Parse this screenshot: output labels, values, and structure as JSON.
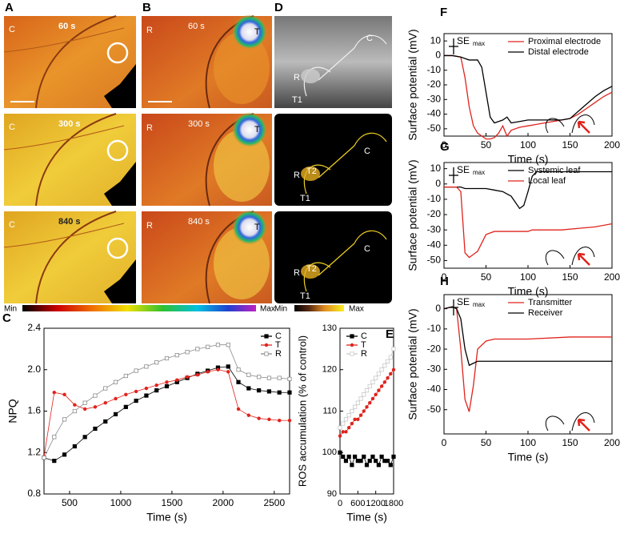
{
  "image_panels": [
    {
      "panel": "A",
      "frames": [
        {
          "marker": "C",
          "time": "60 s"
        },
        {
          "marker": "C",
          "time": "300 s"
        },
        {
          "marker": "C",
          "time": "840 s"
        }
      ]
    },
    {
      "panel": "B",
      "frames": [
        {
          "marker": "R",
          "tissue": "T",
          "time": "60 s"
        },
        {
          "marker": "R",
          "tissue": "T",
          "time": "300 s"
        },
        {
          "marker": "R",
          "tissue": "T",
          "time": "840 s"
        }
      ]
    },
    {
      "panel": "D",
      "frames": [
        {
          "labels": [
            "C",
            "R",
            "T1"
          ]
        },
        {
          "labels": [
            "C",
            "R",
            "T2",
            "T1"
          ]
        },
        {
          "labels": [
            "C",
            "R",
            "T2",
            "T1"
          ]
        }
      ]
    }
  ],
  "color_scales": [
    {
      "min": "Min",
      "max": "Max"
    },
    {
      "min": "Min",
      "max": "Max"
    }
  ],
  "chart_data": [
    {
      "type": "line",
      "panel": "C",
      "xlabel": "Time (s)",
      "ylabel": "NPQ",
      "legend": "upper right",
      "x": [
        250,
        350,
        450,
        550,
        650,
        750,
        850,
        950,
        1050,
        1150,
        1250,
        1350,
        1450,
        1550,
        1650,
        1750,
        1850,
        1950,
        2050,
        2150,
        2250,
        2350,
        2450,
        2550,
        2650
      ],
      "xlim": [
        250,
        2650
      ],
      "xticks": [
        500,
        1000,
        1500,
        2000,
        2500
      ],
      "ylim": [
        0.8,
        2.4
      ],
      "yticks": [
        0.8,
        1.2,
        1.6,
        {
          "value": 2,
          "label": "2.0"
        },
        2.4
      ],
      "series": [
        {
          "name": "C",
          "color": "#000000",
          "marker": "filled-square",
          "values": [
            1.15,
            1.12,
            1.18,
            1.26,
            1.35,
            1.43,
            1.5,
            1.57,
            1.64,
            1.7,
            1.75,
            1.8,
            1.84,
            1.88,
            1.92,
            1.96,
            1.99,
            2.02,
            2.03,
            1.88,
            1.82,
            1.8,
            1.79,
            1.78,
            1.78
          ]
        },
        {
          "name": "T",
          "color": "#e0231c",
          "marker": "circle",
          "values": [
            1.16,
            1.78,
            1.76,
            1.66,
            1.62,
            1.64,
            1.68,
            1.72,
            1.76,
            1.79,
            1.82,
            1.85,
            1.88,
            1.9,
            1.93,
            1.95,
            1.98,
            2.0,
            1.98,
            1.62,
            1.56,
            1.53,
            1.52,
            1.51,
            1.51
          ]
        },
        {
          "name": "R",
          "color": "#8c8c8c",
          "marker": "open-square",
          "values": [
            1.15,
            1.35,
            1.52,
            1.6,
            1.68,
            1.75,
            1.82,
            1.88,
            1.94,
            1.99,
            2.03,
            2.07,
            2.11,
            2.14,
            2.17,
            2.2,
            2.22,
            2.24,
            2.24,
            2.0,
            1.95,
            1.93,
            1.92,
            1.92,
            1.91
          ]
        }
      ]
    },
    {
      "type": "line",
      "panel": "E",
      "xlabel": "Time (s)",
      "ylabel": "ROS accumulation (% of control)",
      "legend": "upper left",
      "x": [
        0,
        100,
        200,
        300,
        400,
        500,
        600,
        700,
        800,
        900,
        1000,
        1100,
        1200,
        1300,
        1400,
        1500,
        1600,
        1700,
        1800
      ],
      "xlim": [
        0,
        1800
      ],
      "xticks": [
        0,
        600,
        1200,
        1800
      ],
      "ylim": [
        90,
        130
      ],
      "yticks": [
        90,
        100,
        110,
        120,
        130
      ],
      "series": [
        {
          "name": "C",
          "color": "#000000",
          "marker": "filled-square",
          "values": [
            100,
            99,
            98,
            99,
            97,
            99,
            98,
            98,
            99,
            97,
            98,
            99,
            98,
            97,
            99,
            98,
            98,
            97,
            99
          ]
        },
        {
          "name": "T",
          "color": "#e0231c",
          "marker": "circle",
          "values": [
            104,
            105,
            105,
            106,
            107,
            108,
            108,
            109,
            110,
            111,
            112,
            113,
            114,
            115,
            116,
            117,
            118,
            119,
            120
          ]
        },
        {
          "name": "R",
          "color": "#c8c8c8",
          "marker": "open-square",
          "values": [
            106,
            107,
            108,
            109,
            110,
            111,
            112,
            113,
            114,
            115,
            116,
            117,
            118,
            119,
            120,
            121,
            122,
            123,
            125
          ]
        }
      ]
    },
    {
      "type": "line",
      "panel": "F",
      "xlabel": "Time (s)",
      "ylabel": "Surface potential (mV)",
      "legend": "upper right",
      "annotation": {
        "text": "SE",
        "subscript": "max"
      },
      "x": [
        0,
        10,
        20,
        25,
        30,
        35,
        40,
        45,
        50,
        55,
        60,
        65,
        70,
        75,
        80,
        90,
        100,
        110,
        120,
        130,
        140,
        150,
        160,
        170,
        180,
        190,
        200
      ],
      "xlim": [
        0,
        200
      ],
      "xticks": [
        0,
        50,
        100,
        150,
        200
      ],
      "ylim": [
        -55,
        15
      ],
      "yticks": [
        10,
        0,
        -10,
        -20,
        -30,
        -40,
        -50
      ],
      "series": [
        {
          "name": "Proximal electrode",
          "color": "#e0231c",
          "values": [
            0,
            0,
            -1,
            -15,
            -35,
            -48,
            -53,
            -55,
            -57,
            -57,
            -56,
            -53,
            -48,
            -55,
            -51,
            -49,
            -48,
            -47,
            -46,
            -45,
            -44,
            -43,
            -40,
            -36,
            -32,
            -28,
            -25
          ]
        },
        {
          "name": "Distal electrode",
          "color": "#000000",
          "values": [
            0,
            0,
            -1,
            -2,
            -3,
            -3,
            -3,
            -8,
            -25,
            -42,
            -46,
            -45,
            -44,
            -42,
            -46,
            -45,
            -44,
            -44,
            -44,
            -44,
            -44,
            -43,
            -38,
            -33,
            -28,
            -24,
            -21
          ]
        }
      ]
    },
    {
      "type": "line",
      "panel": "G",
      "xlabel": "Time (s)",
      "ylabel": "Surface potential (mV)",
      "legend": "upper right",
      "annotation": {
        "text": "SE",
        "subscript": "max"
      },
      "x": [
        0,
        10,
        15,
        20,
        25,
        30,
        35,
        40,
        50,
        60,
        70,
        80,
        85,
        90,
        95,
        100,
        105,
        110,
        120,
        140,
        160,
        180,
        200
      ],
      "xlim": [
        0,
        200
      ],
      "xticks": [
        0,
        50,
        100,
        150,
        200
      ],
      "ylim": [
        -55,
        14
      ],
      "yticks": [
        10,
        0,
        -10,
        -20,
        -30,
        -40,
        -50
      ],
      "series": [
        {
          "name": "Systemic leaf",
          "color": "#000000",
          "values": [
            -2,
            -2,
            -2,
            -2,
            -3,
            -3,
            -3,
            -3,
            -3,
            -4,
            -5,
            -8,
            -12,
            -16,
            -14,
            -5,
            5,
            8,
            8,
            8,
            8,
            8,
            8
          ]
        },
        {
          "name": "Local leaf",
          "color": "#e0231c",
          "values": [
            -2,
            -2,
            -2,
            -5,
            -45,
            -48,
            -46,
            -44,
            -33,
            -31,
            -31,
            -31,
            -31,
            -31,
            -31,
            -31,
            -30,
            -30,
            -30,
            -30,
            -29,
            -28,
            -26
          ]
        }
      ]
    },
    {
      "type": "line",
      "panel": "H",
      "xlabel": "Time (s)",
      "ylabel": "Surface potential (mV)",
      "legend": "upper right",
      "annotation": {
        "text": "SE",
        "subscript": "max"
      },
      "x": [
        0,
        10,
        15,
        20,
        25,
        30,
        35,
        40,
        50,
        60,
        80,
        100,
        150,
        200
      ],
      "xlim": [
        0,
        200
      ],
      "xticks": [
        0,
        50,
        100,
        150,
        200
      ],
      "ylim": [
        -62,
        7
      ],
      "yticks": [
        0,
        -10,
        -20,
        -30,
        -40,
        -50
      ],
      "series": [
        {
          "name": "Transmitter",
          "color": "#e0231c",
          "values": [
            0,
            1,
            0,
            -20,
            -45,
            -51,
            -38,
            -20,
            -16,
            -15,
            -15,
            -15,
            -14,
            -14
          ]
        },
        {
          "name": "Receiver",
          "color": "#000000",
          "values": [
            0,
            1,
            0,
            -5,
            -20,
            -28,
            -27,
            -26,
            -26,
            -26,
            -26,
            -26,
            -26,
            -26
          ]
        }
      ]
    }
  ]
}
